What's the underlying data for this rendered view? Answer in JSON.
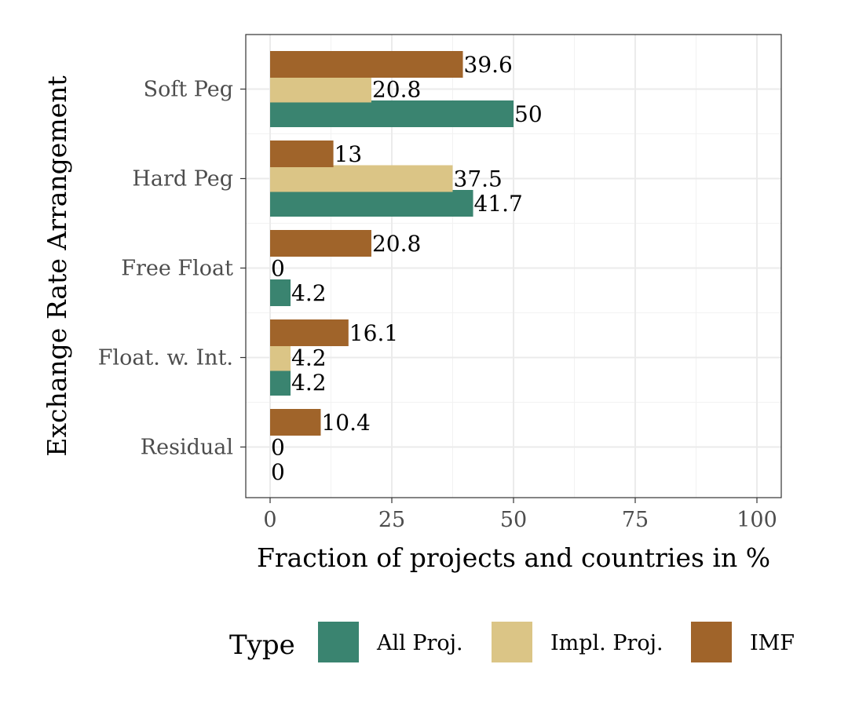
{
  "chart_data": {
    "type": "bar",
    "orientation": "horizontal",
    "categories": [
      "Soft Peg",
      "Hard Peg",
      "Free Float",
      "Float. w. Int.",
      "Residual"
    ],
    "series": [
      {
        "name": "All Proj.",
        "color": "#3a8470",
        "values": [
          50,
          41.7,
          4.2,
          4.2,
          0
        ]
      },
      {
        "name": "Impl. Proj.",
        "color": "#dbc586",
        "values": [
          20.8,
          37.5,
          0,
          4.2,
          0
        ]
      },
      {
        "name": "IMF",
        "color": "#a0642a",
        "values": [
          39.6,
          13,
          20.8,
          16.1,
          10.4
        ]
      }
    ],
    "data_labels": [
      [
        "50",
        "41.7",
        "4.2",
        "4.2",
        "0"
      ],
      [
        "20.8",
        "37.5",
        "0",
        "4.2",
        "0"
      ],
      [
        "39.6",
        "13",
        "20.8",
        "16.1",
        "10.4"
      ]
    ],
    "xlabel": "Fraction of projects and countries in %",
    "ylabel": "Exchange Rate Arrangement",
    "xlim": [
      -5,
      105
    ],
    "xticks": [
      0,
      25,
      50,
      75,
      100
    ],
    "xtick_labels": [
      "0",
      "25",
      "50",
      "75",
      "100"
    ],
    "grid": true,
    "legend": {
      "title": "Type",
      "position": "bottom"
    }
  }
}
